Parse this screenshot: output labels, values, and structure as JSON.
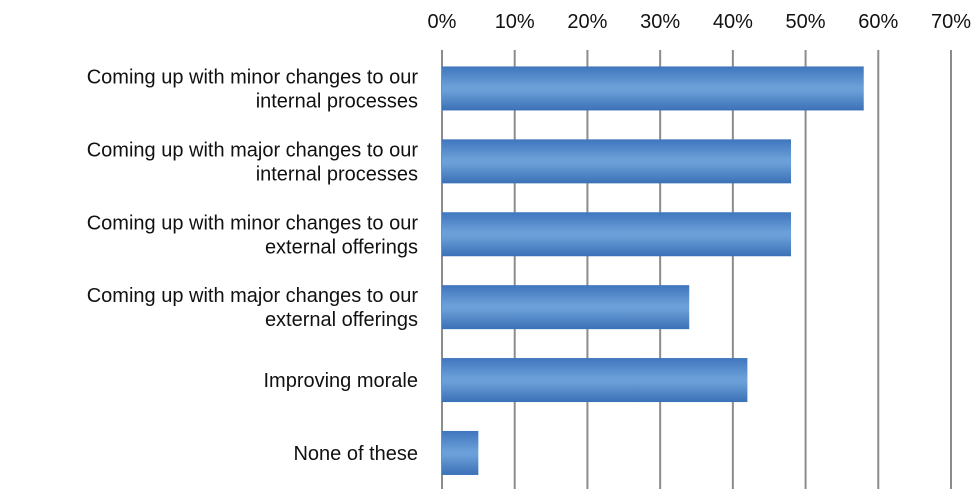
{
  "chart_data": {
    "type": "bar",
    "orientation": "horizontal",
    "categories": [
      [
        "Coming up with minor changes to our",
        "internal processes"
      ],
      [
        "Coming up with major changes to our",
        "internal processes"
      ],
      [
        "Coming up with minor changes to our",
        "external offerings"
      ],
      [
        "Coming up with major changes to our",
        "external offerings"
      ],
      [
        "Improving morale"
      ],
      [
        "None of these"
      ]
    ],
    "values": [
      58,
      48,
      48,
      34,
      42,
      5
    ],
    "x_ticks": [
      "0%",
      "10%",
      "20%",
      "30%",
      "40%",
      "50%",
      "60%",
      "70%"
    ],
    "xlim": [
      0,
      70
    ],
    "x_axis_position": "top",
    "grid": "vertical",
    "bar_color": "#5b8fcc",
    "title": "",
    "xlabel": "",
    "ylabel": ""
  }
}
